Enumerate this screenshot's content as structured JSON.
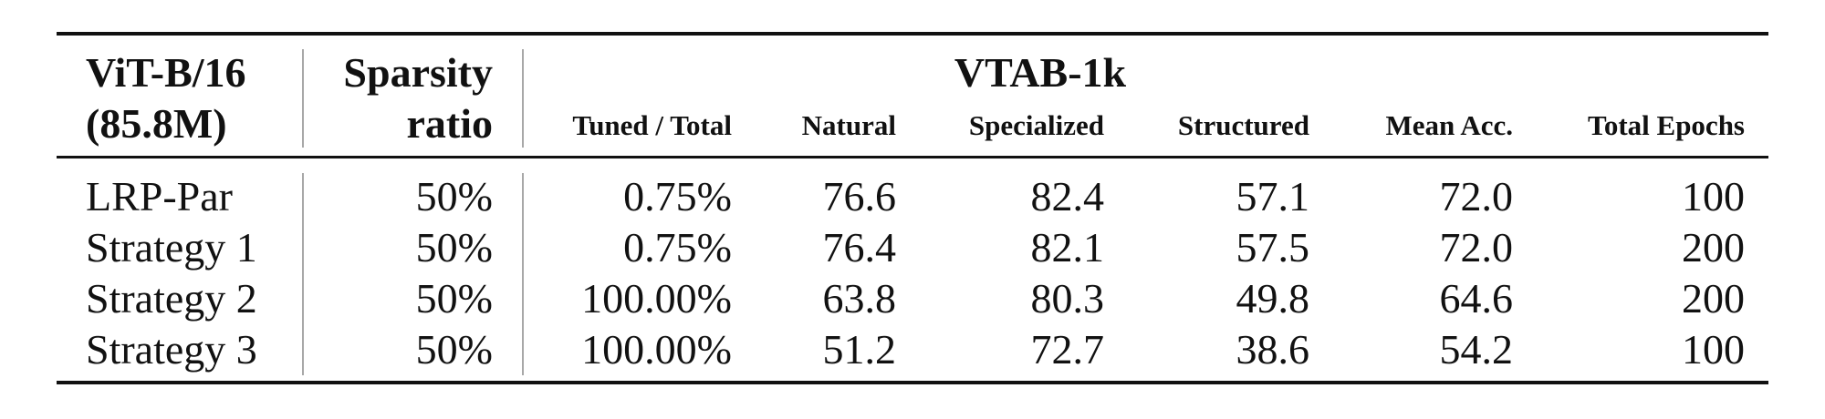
{
  "header": {
    "model_line1": "ViT-B/16",
    "model_line2": "(85.8M)",
    "sparsity_line1": "Sparsity",
    "sparsity_line2": "ratio",
    "group_title": "VTAB-1k",
    "columns": [
      "Tuned / Total",
      "Natural",
      "Specialized",
      "Structured",
      "Mean Acc.",
      "Total Epochs"
    ]
  },
  "rows": [
    {
      "method": "LRP-Par",
      "sparsity": "50%",
      "tuned_total": "0.75%",
      "natural": "76.6",
      "specialized": "82.4",
      "structured": "57.1",
      "mean_acc": "72.0",
      "total_epochs": "100"
    },
    {
      "method": "Strategy 1",
      "sparsity": "50%",
      "tuned_total": "0.75%",
      "natural": "76.4",
      "specialized": "82.1",
      "structured": "57.5",
      "mean_acc": "72.0",
      "total_epochs": "200"
    },
    {
      "method": "Strategy 2",
      "sparsity": "50%",
      "tuned_total": "100.00%",
      "natural": "63.8",
      "specialized": "80.3",
      "structured": "49.8",
      "mean_acc": "64.6",
      "total_epochs": "200"
    },
    {
      "method": "Strategy 3",
      "sparsity": "50%",
      "tuned_total": "100.00%",
      "natural": "51.2",
      "specialized": "72.7",
      "structured": "38.6",
      "mean_acc": "54.2",
      "total_epochs": "100"
    }
  ]
}
